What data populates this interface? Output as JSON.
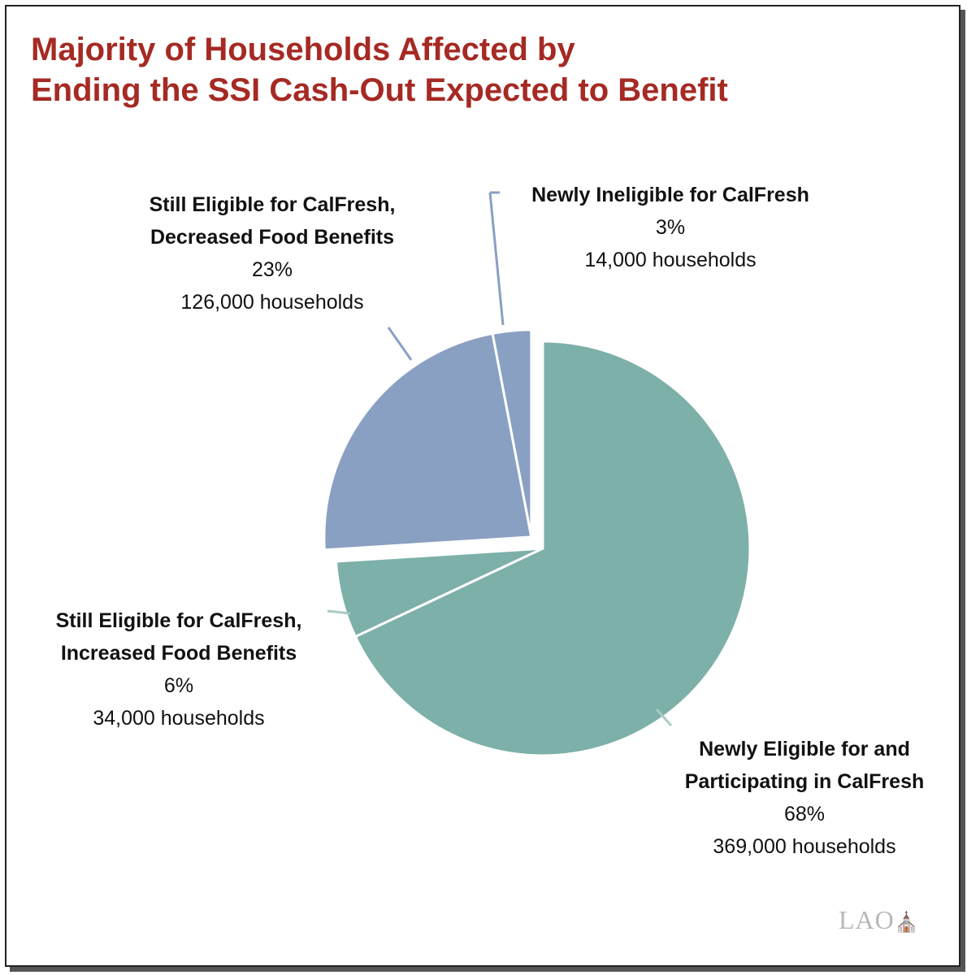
{
  "title": {
    "line1": "Majority of Households Affected by",
    "line2": "Ending the SSI Cash-Out Expected to Benefit"
  },
  "colors": {
    "teal": "#7db0a9",
    "blue": "#8aa0c2",
    "title": "#a52a23",
    "leader_teal": "#a8cbc5",
    "leader_blue": "#8aa0c2"
  },
  "chart_data": {
    "type": "pie",
    "start": "12 o'clock, clockwise",
    "slices": [
      {
        "label_line1": "Newly Eligible for and",
        "label_line2": "Participating in CalFresh",
        "percent": 68,
        "percent_label": "68%",
        "households_label": "369,000 households",
        "color": "#7db0a9",
        "exploded": false
      },
      {
        "label_line1": "Still Eligible for CalFresh,",
        "label_line2": "Increased Food Benefits",
        "percent": 6,
        "percent_label": "6%",
        "households_label": "34,000 households",
        "color": "#7db0a9",
        "exploded": false
      },
      {
        "label_line1": "Still Eligible for CalFresh,",
        "label_line2": "Decreased Food Benefits",
        "percent": 23,
        "percent_label": "23%",
        "households_label": "126,000 households",
        "color": "#8aa0c2",
        "exploded": true
      },
      {
        "label_line1": "Newly Ineligible for CalFresh",
        "label_line2": "",
        "percent": 3,
        "percent_label": "3%",
        "households_label": "14,000 households",
        "color": "#8aa0c2",
        "exploded": true
      }
    ]
  },
  "logo": {
    "text": "LAO",
    "mark": "⛪"
  }
}
